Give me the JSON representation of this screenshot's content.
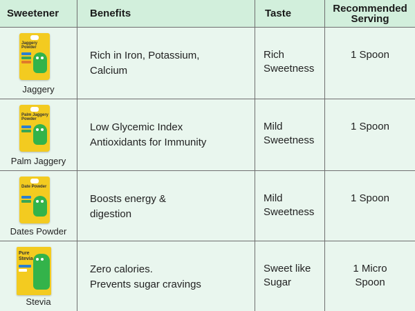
{
  "headers": {
    "sweetener": "Sweetener",
    "benefits": "Benefits",
    "taste": "Taste",
    "serving_line1": "Recommended",
    "serving_line2": "Serving"
  },
  "rows": [
    {
      "name": "Jaggery",
      "pack_label": "Jaggery Powder",
      "benefits_line1": "Rich in Iron, Potassium,",
      "benefits_line2": "Calcium",
      "taste_line1": "Rich",
      "taste_line2": "Sweetness",
      "serving_line1": "1 Spoon",
      "serving_line2": ""
    },
    {
      "name": "Palm Jaggery",
      "pack_label": "Palm Jaggery Powder",
      "benefits_line1": "Low Glycemic Index",
      "benefits_line2": "Antioxidants for Immunity",
      "taste_line1": "Mild",
      "taste_line2": "Sweetness",
      "serving_line1": "1 Spoon",
      "serving_line2": ""
    },
    {
      "name": "Dates Powder",
      "pack_label": "Date Powder",
      "benefits_line1": "Boosts energy &",
      "benefits_line2": "digestion",
      "taste_line1": "Mild",
      "taste_line2": "Sweetness",
      "serving_line1": "1 Spoon",
      "serving_line2": ""
    },
    {
      "name": "Stevia",
      "pack_label": "Pure Stevia",
      "benefits_line1": "Zero calories.",
      "benefits_line2": "Prevents sugar cravings",
      "taste_line1": "Sweet like",
      "taste_line2": "Sugar",
      "serving_line1": "1 Micro",
      "serving_line2": "Spoon"
    }
  ],
  "colors": {
    "header_bg": "#d2efdc",
    "body_bg": "#e9f6ee",
    "pack_yellow": "#f3cb20",
    "mascot_green": "#33b34a"
  }
}
